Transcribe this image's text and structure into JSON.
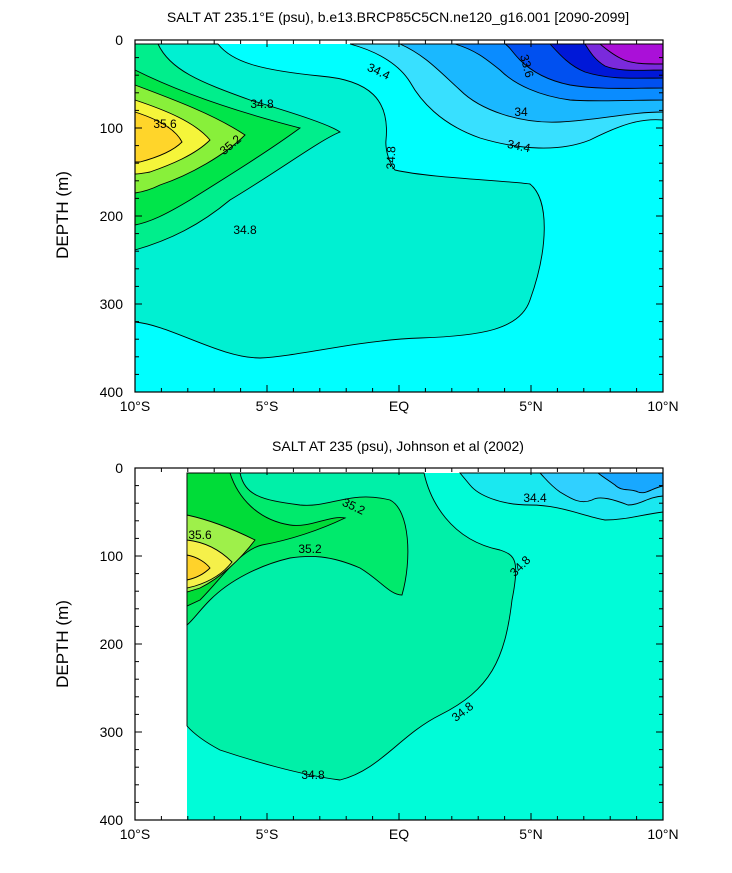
{
  "chart_data": [
    {
      "type": "contour",
      "title": "SALT AT 235.1°E (psu), b.e13.BRCP85C5CN.ne120_g16.001 [2090-2099]",
      "xlabel": "",
      "ylabel": "DEPTH (m)",
      "xlim": [
        -10,
        10
      ],
      "ylim": [
        400,
        0
      ],
      "x_tick_labels": [
        "10°S",
        "5°S",
        "EQ",
        "5°N",
        "10°N"
      ],
      "y_tick_labels": [
        "0",
        "100",
        "200",
        "300",
        "400"
      ],
      "contour_labels": [
        "34.4",
        "33.6",
        "34.8",
        "35.6",
        "34",
        "35.2",
        "34.8",
        "34.4",
        "34.8"
      ],
      "levels": [
        33.6,
        33.8,
        34.0,
        34.2,
        34.4,
        34.6,
        34.8,
        35.0,
        35.2,
        35.4,
        35.6,
        35.8
      ]
    },
    {
      "type": "contour",
      "title": "SALT AT 235 (psu), Johnson et al (2002)",
      "xlabel": "",
      "ylabel": "DEPTH (m)",
      "xlim": [
        -10,
        10
      ],
      "ylim": [
        400,
        0
      ],
      "x_tick_labels": [
        "10°S",
        "5°S",
        "EQ",
        "5°N",
        "10°N"
      ],
      "y_tick_labels": [
        "0",
        "100",
        "200",
        "300",
        "400"
      ],
      "contour_labels": [
        "35.2",
        "34.4",
        "35.6",
        "35.2",
        "34.8",
        "34.8",
        "34.8"
      ],
      "levels": [
        34.4,
        34.6,
        34.8,
        35.0,
        35.2,
        35.4,
        35.6,
        35.8
      ]
    }
  ]
}
